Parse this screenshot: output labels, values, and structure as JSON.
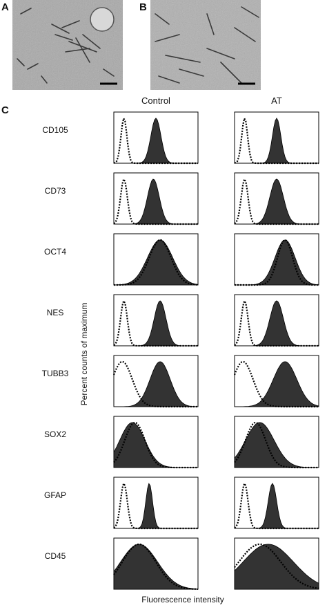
{
  "panels": {
    "a": {
      "label": "A"
    },
    "b": {
      "label": "B"
    },
    "c": {
      "label": "C",
      "columns": [
        "Control",
        "AT"
      ],
      "rows": [
        "CD105",
        "CD73",
        "OCT4",
        "NES",
        "TUBB3",
        "SOX2",
        "GFAP",
        "CD45"
      ],
      "y_axis_label": "Percent counts of maximum",
      "x_axis_label": "Fluorescence intensity"
    }
  }
}
